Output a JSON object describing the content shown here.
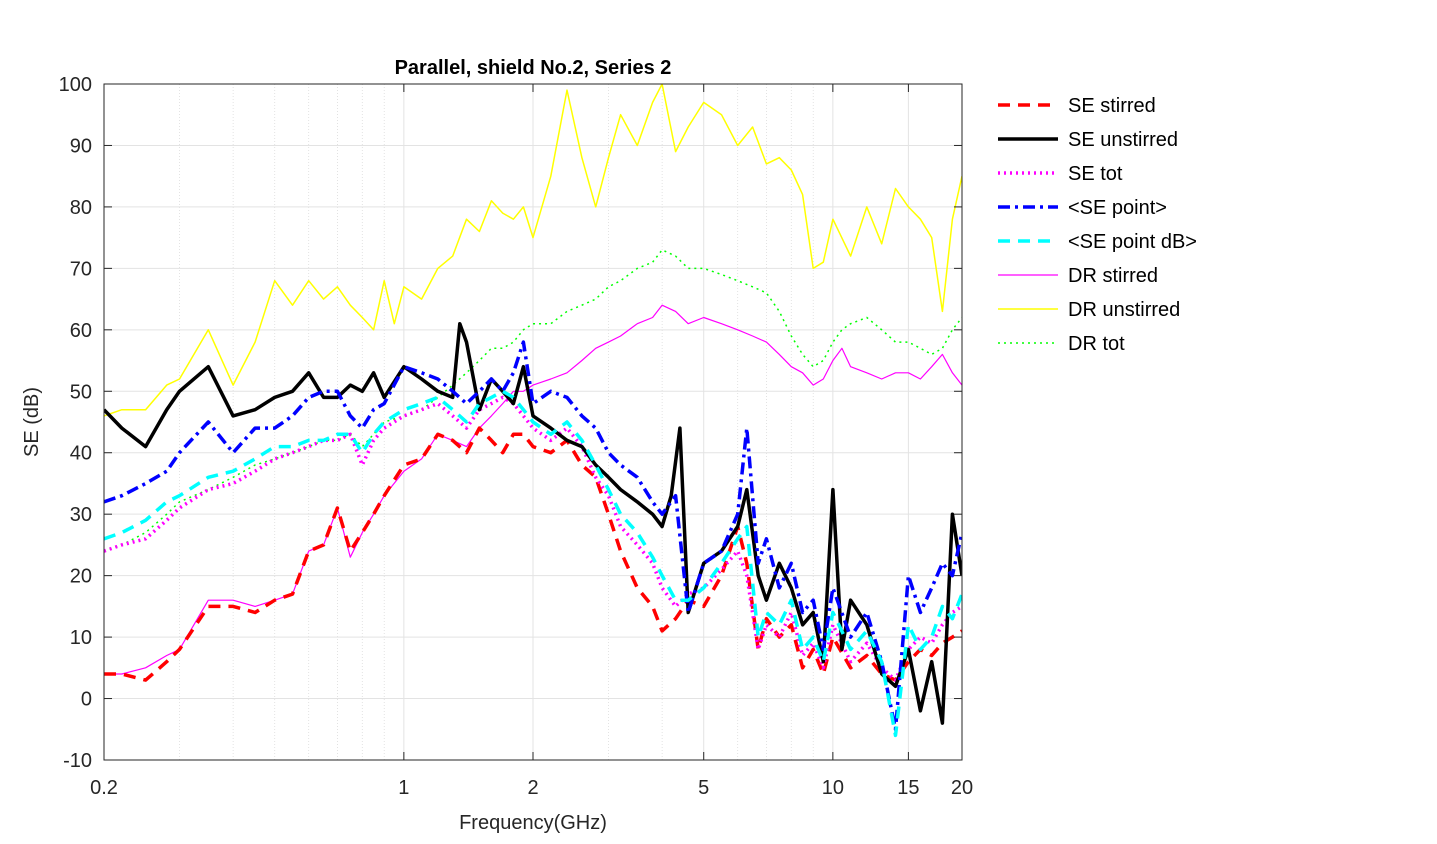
{
  "chart_data": {
    "type": "line",
    "title": "Parallel, shield No.2, Series 2",
    "xlabel": "Frequency(GHz)",
    "ylabel": "SE (dB)",
    "xscale": "log",
    "xlim": [
      0.2,
      20
    ],
    "ylim": [
      -10,
      100
    ],
    "xticks": [
      0.2,
      1,
      2,
      5,
      10,
      15,
      20
    ],
    "xtick_labels": [
      "0.2",
      "1",
      "2",
      "5",
      "10",
      "15",
      "20"
    ],
    "yticks": [
      -10,
      0,
      10,
      20,
      30,
      40,
      50,
      60,
      70,
      80,
      90,
      100
    ],
    "ytick_labels": [
      "-10",
      "0",
      "10",
      "20",
      "30",
      "40",
      "50",
      "60",
      "70",
      "80",
      "90",
      "100"
    ],
    "grid": true,
    "minor_grid": true,
    "legend_position": "outside-right",
    "series": [
      {
        "name": "SE stirred",
        "color": "#ff0000",
        "style": "dashed",
        "width": 3.5,
        "x": [
          0.2,
          0.22,
          0.25,
          0.28,
          0.3,
          0.35,
          0.4,
          0.45,
          0.5,
          0.55,
          0.6,
          0.65,
          0.7,
          0.75,
          0.8,
          0.85,
          0.9,
          1.0,
          1.1,
          1.2,
          1.3,
          1.4,
          1.5,
          1.6,
          1.7,
          1.8,
          1.9,
          2.0,
          2.2,
          2.4,
          2.6,
          2.8,
          3.0,
          3.2,
          3.5,
          3.8,
          4.0,
          4.3,
          4.6,
          5.0,
          5.5,
          6.0,
          6.3,
          6.7,
          7.0,
          7.5,
          8.0,
          8.5,
          9.0,
          9.5,
          10,
          11,
          12,
          13,
          14,
          15,
          16,
          17,
          18,
          19,
          20
        ],
        "y": [
          4,
          4,
          3,
          6,
          8,
          15,
          15,
          14,
          16,
          17,
          24,
          25,
          31,
          24,
          27,
          30,
          33,
          38,
          39,
          43,
          42,
          40,
          44,
          42,
          40,
          43,
          43,
          41,
          40,
          42,
          38,
          36,
          30,
          24,
          18,
          15,
          11,
          13,
          16,
          15,
          20,
          28,
          22,
          8,
          13,
          10,
          12,
          5,
          8,
          4,
          10,
          5,
          7,
          4,
          3,
          6,
          8,
          7,
          9,
          10,
          11
        ]
      },
      {
        "name": "SE unstirred",
        "color": "#000000",
        "style": "solid",
        "width": 3.5,
        "x": [
          0.2,
          0.22,
          0.25,
          0.28,
          0.3,
          0.35,
          0.4,
          0.45,
          0.5,
          0.55,
          0.6,
          0.65,
          0.7,
          0.75,
          0.8,
          0.85,
          0.9,
          1.0,
          1.1,
          1.2,
          1.3,
          1.35,
          1.4,
          1.5,
          1.6,
          1.7,
          1.8,
          1.9,
          2.0,
          2.2,
          2.4,
          2.6,
          2.8,
          3.0,
          3.2,
          3.5,
          3.8,
          4.0,
          4.2,
          4.4,
          4.6,
          5.0,
          5.5,
          6.0,
          6.3,
          6.7,
          7.0,
          7.5,
          8.0,
          8.5,
          9.0,
          9.5,
          10,
          10.5,
          11,
          12,
          13,
          14,
          15,
          16,
          17,
          18,
          19,
          20
        ],
        "y": [
          47,
          44,
          41,
          47,
          50,
          54,
          46,
          47,
          49,
          50,
          53,
          49,
          49,
          51,
          50,
          53,
          49,
          54,
          52,
          50,
          49,
          61,
          58,
          47,
          52,
          50,
          48,
          54,
          46,
          44,
          42,
          41,
          38,
          36,
          34,
          32,
          30,
          28,
          33,
          44,
          14,
          22,
          24,
          28,
          34,
          20,
          16,
          22,
          18,
          12,
          14,
          6,
          34,
          8,
          16,
          12,
          4,
          2,
          8,
          -2,
          6,
          -4,
          30,
          20
        ]
      },
      {
        "name": "SE tot",
        "color": "#ff00ff",
        "style": "dotted",
        "width": 3.5,
        "x": [
          0.2,
          0.22,
          0.25,
          0.28,
          0.3,
          0.35,
          0.4,
          0.45,
          0.5,
          0.55,
          0.6,
          0.65,
          0.7,
          0.75,
          0.8,
          0.85,
          0.9,
          1.0,
          1.1,
          1.2,
          1.3,
          1.4,
          1.5,
          1.6,
          1.7,
          1.8,
          1.9,
          2.0,
          2.2,
          2.4,
          2.6,
          2.8,
          3.0,
          3.2,
          3.5,
          3.8,
          4.0,
          4.3,
          4.6,
          5.0,
          5.5,
          6.0,
          6.3,
          6.7,
          7.0,
          7.5,
          8.0,
          8.5,
          9.0,
          9.5,
          10,
          11,
          12,
          13,
          14,
          15,
          16,
          17,
          18,
          19,
          20
        ],
        "y": [
          24,
          25,
          26,
          29,
          31,
          34,
          35,
          37,
          39,
          40,
          41,
          42,
          42,
          43,
          38,
          42,
          44,
          46,
          47,
          48,
          46,
          44,
          47,
          48,
          49,
          48,
          46,
          44,
          42,
          44,
          41,
          36,
          33,
          28,
          25,
          22,
          18,
          15,
          17,
          18,
          21,
          24,
          20,
          8,
          12,
          10,
          14,
          7,
          9,
          5,
          12,
          6,
          9,
          5,
          3,
          8,
          10,
          9,
          12,
          14,
          15
        ]
      },
      {
        "name": "<SE point>",
        "color": "#0000ff",
        "style": "dashdot",
        "width": 3.5,
        "x": [
          0.2,
          0.22,
          0.25,
          0.28,
          0.3,
          0.35,
          0.4,
          0.45,
          0.5,
          0.55,
          0.6,
          0.65,
          0.7,
          0.75,
          0.8,
          0.85,
          0.9,
          1.0,
          1.1,
          1.2,
          1.3,
          1.4,
          1.5,
          1.6,
          1.7,
          1.8,
          1.9,
          2.0,
          2.2,
          2.4,
          2.6,
          2.8,
          3.0,
          3.2,
          3.5,
          3.8,
          4.0,
          4.3,
          4.6,
          5.0,
          5.5,
          6.0,
          6.3,
          6.7,
          7.0,
          7.5,
          8.0,
          8.5,
          9.0,
          9.5,
          10,
          11,
          12,
          13,
          14,
          15,
          16,
          17,
          18,
          19,
          20
        ],
        "y": [
          32,
          33,
          35,
          37,
          40,
          45,
          40,
          44,
          44,
          46,
          49,
          50,
          50,
          46,
          44,
          47,
          48,
          54,
          53,
          52,
          50,
          48,
          50,
          52,
          50,
          53,
          58,
          48,
          50,
          49,
          46,
          44,
          40,
          38,
          36,
          32,
          30,
          33,
          14,
          22,
          24,
          30,
          44,
          22,
          26,
          18,
          22,
          14,
          16,
          8,
          18,
          10,
          14,
          6,
          -5,
          20,
          14,
          18,
          22,
          20,
          27
        ]
      },
      {
        "name": "<SE point dB>",
        "color": "#00ffff",
        "style": "dashed",
        "width": 3.5,
        "x": [
          0.2,
          0.22,
          0.25,
          0.28,
          0.3,
          0.35,
          0.4,
          0.45,
          0.5,
          0.55,
          0.6,
          0.65,
          0.7,
          0.75,
          0.8,
          0.85,
          0.9,
          1.0,
          1.1,
          1.2,
          1.3,
          1.4,
          1.5,
          1.6,
          1.7,
          1.8,
          1.9,
          2.0,
          2.2,
          2.4,
          2.6,
          2.8,
          3.0,
          3.2,
          3.5,
          3.8,
          4.0,
          4.3,
          4.6,
          5.0,
          5.5,
          6.0,
          6.3,
          6.7,
          7.0,
          7.5,
          8.0,
          8.5,
          9.0,
          9.5,
          10,
          11,
          12,
          13,
          14,
          15,
          16,
          17,
          18,
          19,
          20
        ],
        "y": [
          26,
          27,
          29,
          32,
          33,
          36,
          37,
          39,
          41,
          41,
          42,
          42,
          43,
          43,
          40,
          43,
          45,
          47,
          48,
          49,
          47,
          45,
          48,
          49,
          50,
          49,
          47,
          45,
          43,
          45,
          42,
          38,
          34,
          30,
          27,
          23,
          20,
          16,
          16,
          18,
          22,
          26,
          28,
          10,
          14,
          12,
          16,
          8,
          10,
          6,
          14,
          8,
          11,
          6,
          -6,
          12,
          8,
          10,
          15,
          13,
          17
        ]
      },
      {
        "name": "DR stirred",
        "color": "#ff00ff",
        "style": "solid",
        "width": 1.2,
        "x": [
          0.2,
          0.22,
          0.25,
          0.28,
          0.3,
          0.35,
          0.4,
          0.45,
          0.5,
          0.55,
          0.6,
          0.65,
          0.7,
          0.75,
          0.8,
          0.85,
          0.9,
          1.0,
          1.1,
          1.2,
          1.3,
          1.4,
          1.5,
          1.6,
          1.7,
          1.8,
          1.9,
          2.0,
          2.2,
          2.4,
          2.6,
          2.8,
          3.0,
          3.2,
          3.5,
          3.8,
          4.0,
          4.3,
          4.6,
          5.0,
          5.5,
          6.0,
          6.5,
          7.0,
          7.5,
          8.0,
          8.5,
          9.0,
          9.5,
          10,
          10.5,
          11,
          12,
          13,
          14,
          15,
          16,
          17,
          18,
          19,
          20
        ],
        "y": [
          4,
          4,
          5,
          7,
          8,
          16,
          16,
          15,
          16,
          17,
          24,
          25,
          31,
          23,
          27,
          30,
          33,
          37,
          39,
          43,
          42,
          41,
          44,
          46,
          48,
          50,
          50,
          51,
          52,
          53,
          55,
          57,
          58,
          59,
          61,
          62,
          64,
          63,
          61,
          62,
          61,
          60,
          59,
          58,
          56,
          54,
          53,
          51,
          52,
          55,
          57,
          54,
          53,
          52,
          53,
          53,
          52,
          54,
          56,
          53,
          51
        ]
      },
      {
        "name": "DR unstirred",
        "color": "#ffff00",
        "style": "solid",
        "width": 1.5,
        "x": [
          0.2,
          0.22,
          0.25,
          0.28,
          0.3,
          0.35,
          0.4,
          0.45,
          0.5,
          0.55,
          0.6,
          0.65,
          0.7,
          0.75,
          0.8,
          0.85,
          0.9,
          0.95,
          1.0,
          1.1,
          1.2,
          1.3,
          1.4,
          1.5,
          1.6,
          1.7,
          1.8,
          1.9,
          2.0,
          2.2,
          2.4,
          2.6,
          2.8,
          3.0,
          3.2,
          3.5,
          3.8,
          4.0,
          4.3,
          4.6,
          5.0,
          5.5,
          6.0,
          6.5,
          7.0,
          7.5,
          8.0,
          8.5,
          9.0,
          9.5,
          10,
          11,
          12,
          13,
          14,
          15,
          16,
          17,
          18,
          19,
          20
        ],
        "y": [
          46,
          47,
          47,
          51,
          52,
          60,
          51,
          58,
          68,
          64,
          68,
          65,
          67,
          64,
          62,
          60,
          68,
          61,
          67,
          65,
          70,
          72,
          78,
          76,
          81,
          79,
          78,
          80,
          75,
          85,
          99,
          88,
          80,
          88,
          95,
          90,
          97,
          100,
          89,
          93,
          97,
          95,
          90,
          93,
          87,
          88,
          86,
          82,
          70,
          71,
          78,
          72,
          80,
          74,
          83,
          80,
          78,
          75,
          63,
          78,
          85
        ]
      },
      {
        "name": "DR tot",
        "color": "#00ff00",
        "style": "dotted",
        "width": 1.5,
        "x": [
          0.2,
          0.22,
          0.25,
          0.28,
          0.3,
          0.35,
          0.4,
          0.45,
          0.5,
          0.55,
          0.6,
          0.65,
          0.7,
          0.75,
          0.8,
          0.85,
          0.9,
          1.0,
          1.1,
          1.2,
          1.3,
          1.4,
          1.5,
          1.6,
          1.7,
          1.8,
          1.9,
          2.0,
          2.2,
          2.4,
          2.6,
          2.8,
          3.0,
          3.2,
          3.5,
          3.8,
          4.0,
          4.3,
          4.6,
          5.0,
          5.5,
          6.0,
          6.5,
          7.0,
          7.5,
          8.0,
          8.5,
          9.0,
          9.5,
          10,
          10.5,
          11,
          12,
          13,
          14,
          15,
          16,
          17,
          18,
          19,
          20
        ],
        "y": [
          24,
          25,
          27,
          30,
          32,
          34,
          36,
          38,
          39,
          40,
          41,
          42,
          42,
          43,
          41,
          43,
          45,
          46,
          47,
          49,
          51,
          53,
          55,
          57,
          57,
          58,
          60,
          61,
          61,
          63,
          64,
          65,
          67,
          68,
          70,
          71,
          73,
          72,
          70,
          70,
          69,
          68,
          67,
          66,
          63,
          59,
          56,
          54,
          55,
          58,
          60,
          61,
          62,
          60,
          58,
          58,
          57,
          56,
          57,
          60,
          62
        ]
      }
    ]
  }
}
